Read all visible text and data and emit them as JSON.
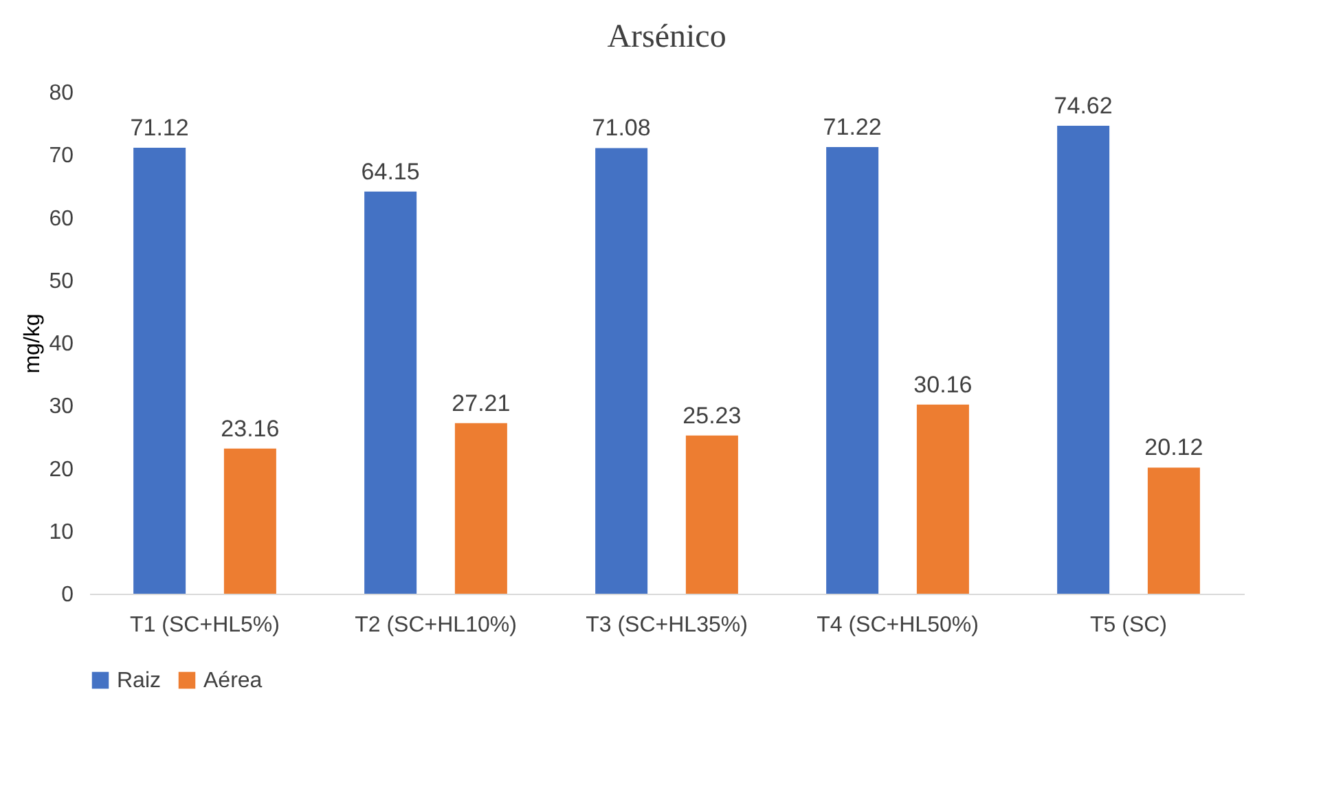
{
  "chart_data": {
    "type": "bar",
    "title": "Arsénico",
    "ylabel": "mg/kg",
    "categories": [
      "T1 (SC+HL5%)",
      "T2 (SC+HL10%)",
      "T3 (SC+HL35%)",
      "T4 (SC+HL50%)",
      "T5 (SC)"
    ],
    "series": [
      {
        "name": "Raiz",
        "color": "#4472c4",
        "values": [
          71.12,
          64.15,
          71.08,
          71.22,
          74.62
        ]
      },
      {
        "name": "Aérea",
        "color": "#ed7d31",
        "values": [
          23.16,
          27.21,
          25.23,
          30.16,
          20.12
        ]
      }
    ],
    "ylim": [
      0,
      80
    ],
    "yticks": [
      0,
      10,
      20,
      30,
      40,
      50,
      60,
      70,
      80
    ],
    "data_labels": true,
    "grid": false,
    "legend": "bottom"
  }
}
